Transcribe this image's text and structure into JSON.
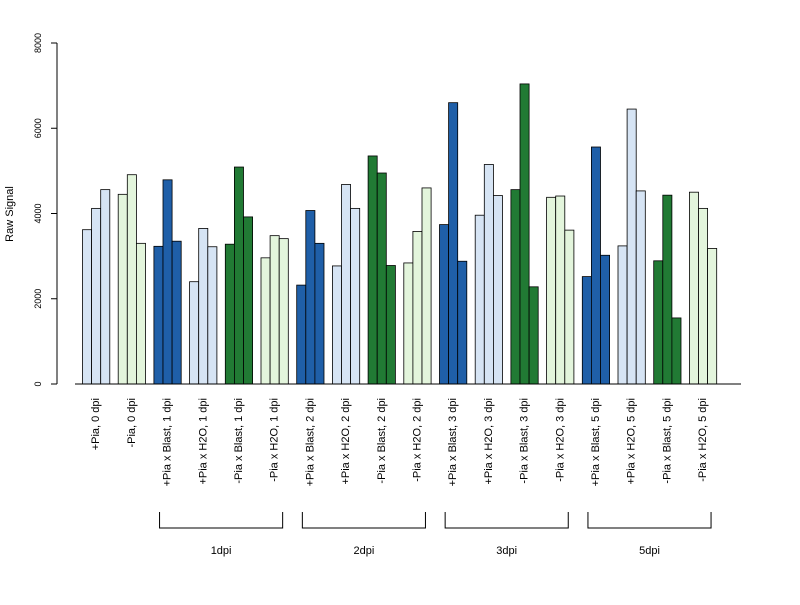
{
  "chart_data": {
    "type": "bar",
    "ylabel": "Raw Signal",
    "ylim": [
      0,
      8000
    ],
    "yticks": [
      0,
      2000,
      4000,
      6000,
      8000
    ],
    "ytick_labels": [
      "0",
      "2000",
      "4000",
      "6000",
      "8000"
    ],
    "grid": false,
    "legend": false,
    "colors": {
      "plus_pia_light": "#d6e4f4",
      "minus_pia_light": "#e3f5dc",
      "blast_blue": "#1f5fa8",
      "blast_green": "#217a34"
    },
    "groups": [
      {
        "label": "+Pia, 0 dpi",
        "color": "plus_pia_light",
        "values": [
          3620,
          4120,
          4560
        ]
      },
      {
        "label": "-Pia, 0 dpi",
        "color": "minus_pia_light",
        "values": [
          4450,
          4910,
          3300
        ]
      },
      {
        "label": "+Pia x Blast, 1 dpi",
        "color": "blast_blue",
        "values": [
          3230,
          4790,
          3350
        ]
      },
      {
        "label": "+Pia x H2O, 1 dpi",
        "color": "plus_pia_light",
        "values": [
          2400,
          3650,
          3220
        ]
      },
      {
        "label": "-Pia x Blast, 1 dpi",
        "color": "blast_green",
        "values": [
          3280,
          5090,
          3920
        ]
      },
      {
        "label": "-Pia x H2O, 1 dpi",
        "color": "minus_pia_light",
        "values": [
          2960,
          3480,
          3410
        ]
      },
      {
        "label": "+Pia x Blast, 2 dpi",
        "color": "blast_blue",
        "values": [
          2320,
          4070,
          3300
        ]
      },
      {
        "label": "+Pia x H2O, 2 dpi",
        "color": "plus_pia_light",
        "values": [
          2770,
          4680,
          4120
        ]
      },
      {
        "label": "-Pia x Blast, 2 dpi",
        "color": "blast_green",
        "values": [
          5350,
          4950,
          2780
        ]
      },
      {
        "label": "-Pia x H2O, 2 dpi",
        "color": "minus_pia_light",
        "values": [
          2840,
          3580,
          4600
        ]
      },
      {
        "label": "+Pia x Blast, 3 dpi",
        "color": "blast_blue",
        "values": [
          3740,
          6600,
          2880
        ]
      },
      {
        "label": "+Pia x H2O, 3 dpi",
        "color": "plus_pia_light",
        "values": [
          3960,
          5150,
          4420
        ]
      },
      {
        "label": "-Pia x Blast, 3 dpi",
        "color": "blast_green",
        "values": [
          4560,
          7040,
          2280
        ]
      },
      {
        "label": "-Pia x H2O, 3 dpi",
        "color": "minus_pia_light",
        "values": [
          4380,
          4410,
          3610
        ]
      },
      {
        "label": "+Pia x Blast, 5 dpi",
        "color": "blast_blue",
        "values": [
          2520,
          5560,
          3020
        ]
      },
      {
        "label": "+Pia x H2O, 5 dpi",
        "color": "plus_pia_light",
        "values": [
          3240,
          6450,
          4530
        ]
      },
      {
        "label": "-Pia x Blast, 5 dpi",
        "color": "blast_green",
        "values": [
          2890,
          4430,
          1550
        ]
      },
      {
        "label": "-Pia x H2O, 5 dpi",
        "color": "minus_pia_light",
        "values": [
          4500,
          4120,
          3180
        ]
      }
    ],
    "brackets": [
      {
        "label": "1dpi",
        "from_group": 2,
        "to_group": 5
      },
      {
        "label": "2dpi",
        "from_group": 6,
        "to_group": 9
      },
      {
        "label": "3dpi",
        "from_group": 10,
        "to_group": 13
      },
      {
        "label": "5dpi",
        "from_group": 14,
        "to_group": 17
      }
    ]
  }
}
